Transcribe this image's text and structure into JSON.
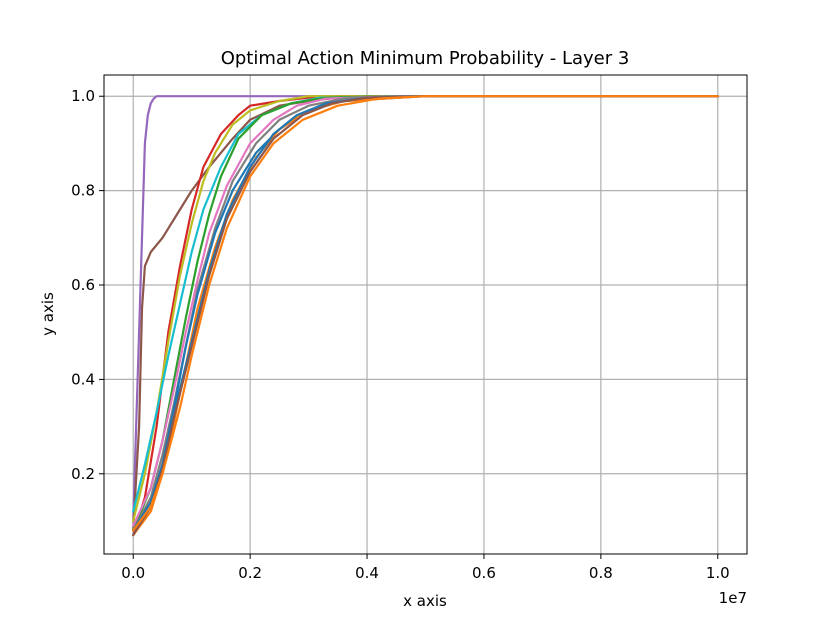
{
  "chart_data": {
    "type": "line",
    "title": "Optimal Action Minimum Probability - Layer 3",
    "xlabel": "x axis",
    "ylabel": "y axis",
    "x_offset_text": "1e7",
    "xlim": [
      -0.05,
      1.05
    ],
    "ylim": [
      0.03,
      1.045
    ],
    "x_scale_note": "x values shown in units of 1e7",
    "xticks": [
      0.0,
      0.2,
      0.4,
      0.6,
      0.8,
      1.0
    ],
    "xtick_labels": [
      "0.0",
      "0.2",
      "0.4",
      "0.6",
      "0.8",
      "1.0"
    ],
    "yticks": [
      0.2,
      0.4,
      0.6,
      0.8,
      1.0
    ],
    "ytick_labels": [
      "0.2",
      "0.4",
      "0.6",
      "0.8",
      "1.0"
    ],
    "grid": true,
    "series": [
      {
        "color": "#9467bd",
        "x": [
          0.0,
          0.01,
          0.02,
          0.025,
          0.03,
          0.035,
          0.04,
          0.05,
          0.1,
          1.0
        ],
        "y": [
          0.1,
          0.5,
          0.9,
          0.96,
          0.985,
          0.995,
          1.0,
          1.0,
          1.0,
          1.0
        ]
      },
      {
        "color": "#8c564b",
        "x": [
          0.0,
          0.01,
          0.015,
          0.02,
          0.03,
          0.05,
          0.08,
          0.1,
          0.13,
          0.17,
          0.2,
          0.25,
          0.3,
          0.35,
          0.4,
          0.5,
          1.0
        ],
        "y": [
          0.08,
          0.3,
          0.55,
          0.64,
          0.67,
          0.7,
          0.76,
          0.8,
          0.85,
          0.91,
          0.95,
          0.98,
          0.99,
          0.997,
          1.0,
          1.0,
          1.0
        ]
      },
      {
        "color": "#d62728",
        "x": [
          0.0,
          0.02,
          0.04,
          0.06,
          0.08,
          0.1,
          0.12,
          0.15,
          0.18,
          0.2,
          0.25,
          0.3,
          0.35,
          0.45,
          1.0
        ],
        "y": [
          0.07,
          0.15,
          0.3,
          0.5,
          0.64,
          0.76,
          0.85,
          0.92,
          0.96,
          0.98,
          0.99,
          0.997,
          1.0,
          1.0,
          1.0
        ]
      },
      {
        "color": "#bcbd22",
        "x": [
          0.0,
          0.02,
          0.04,
          0.06,
          0.08,
          0.1,
          0.12,
          0.14,
          0.17,
          0.2,
          0.25,
          0.3,
          0.4,
          1.0
        ],
        "y": [
          0.1,
          0.2,
          0.33,
          0.48,
          0.62,
          0.73,
          0.82,
          0.88,
          0.94,
          0.97,
          0.99,
          1.0,
          1.0,
          1.0
        ]
      },
      {
        "color": "#17becf",
        "x": [
          0.0,
          0.02,
          0.04,
          0.06,
          0.08,
          0.1,
          0.12,
          0.15,
          0.18,
          0.22,
          0.27,
          0.32,
          0.45,
          1.0
        ],
        "y": [
          0.12,
          0.22,
          0.33,
          0.45,
          0.56,
          0.67,
          0.76,
          0.85,
          0.92,
          0.96,
          0.985,
          0.997,
          1.0,
          1.0
        ]
      },
      {
        "color": "#2ca02c",
        "x": [
          0.0,
          0.03,
          0.05,
          0.07,
          0.09,
          0.11,
          0.13,
          0.15,
          0.18,
          0.22,
          0.27,
          0.33,
          0.45,
          1.0
        ],
        "y": [
          0.08,
          0.17,
          0.27,
          0.4,
          0.53,
          0.65,
          0.75,
          0.83,
          0.91,
          0.96,
          0.985,
          0.997,
          1.0,
          1.0
        ]
      },
      {
        "color": "#e377c2",
        "x": [
          0.0,
          0.03,
          0.05,
          0.07,
          0.09,
          0.11,
          0.13,
          0.16,
          0.2,
          0.24,
          0.28,
          0.33,
          0.45,
          1.0
        ],
        "y": [
          0.09,
          0.17,
          0.27,
          0.38,
          0.5,
          0.61,
          0.71,
          0.81,
          0.9,
          0.95,
          0.98,
          0.995,
          1.0,
          1.0
        ]
      },
      {
        "color": "#7f7f7f",
        "x": [
          0.0,
          0.03,
          0.05,
          0.07,
          0.09,
          0.11,
          0.14,
          0.17,
          0.21,
          0.25,
          0.3,
          0.36,
          0.45,
          1.0
        ],
        "y": [
          0.08,
          0.15,
          0.24,
          0.35,
          0.47,
          0.59,
          0.72,
          0.82,
          0.9,
          0.95,
          0.98,
          0.995,
          1.0,
          1.0
        ]
      },
      {
        "color": "#1f77b4",
        "x": [
          0.0,
          0.03,
          0.05,
          0.07,
          0.09,
          0.11,
          0.14,
          0.17,
          0.21,
          0.25,
          0.3,
          0.36,
          0.5,
          1.0
        ],
        "y": [
          0.07,
          0.13,
          0.22,
          0.34,
          0.47,
          0.58,
          0.71,
          0.8,
          0.88,
          0.93,
          0.97,
          0.99,
          1.0,
          1.0
        ]
      },
      {
        "color": "#ff7f0e",
        "x": [
          0.0,
          0.03,
          0.05,
          0.07,
          0.09,
          0.11,
          0.14,
          0.17,
          0.21,
          0.25,
          0.3,
          0.36,
          0.5,
          1.0
        ],
        "y": [
          0.07,
          0.12,
          0.2,
          0.31,
          0.43,
          0.55,
          0.68,
          0.78,
          0.87,
          0.93,
          0.97,
          0.99,
          1.0,
          1.0
        ]
      },
      {
        "color": "#1f77b4",
        "x": [
          0.0,
          0.03,
          0.05,
          0.07,
          0.1,
          0.13,
          0.16,
          0.2,
          0.24,
          0.28,
          0.33,
          0.4,
          0.5,
          1.0
        ],
        "y": [
          0.08,
          0.14,
          0.22,
          0.33,
          0.48,
          0.63,
          0.75,
          0.85,
          0.92,
          0.96,
          0.985,
          0.997,
          1.0,
          1.0
        ]
      },
      {
        "color": "#8c564b",
        "x": [
          0.0,
          0.03,
          0.05,
          0.07,
          0.1,
          0.13,
          0.16,
          0.2,
          0.24,
          0.29,
          0.34,
          0.4,
          0.5,
          1.0
        ],
        "y": [
          0.07,
          0.13,
          0.21,
          0.32,
          0.47,
          0.62,
          0.74,
          0.84,
          0.91,
          0.96,
          0.985,
          0.997,
          1.0,
          1.0
        ]
      },
      {
        "color": "#ff7f0e",
        "x": [
          0.0,
          0.03,
          0.05,
          0.08,
          0.1,
          0.13,
          0.16,
          0.2,
          0.24,
          0.29,
          0.35,
          0.42,
          0.5,
          1.0
        ],
        "y": [
          0.08,
          0.13,
          0.2,
          0.34,
          0.45,
          0.6,
          0.72,
          0.83,
          0.9,
          0.95,
          0.98,
          0.995,
          1.0,
          1.0
        ]
      }
    ]
  }
}
